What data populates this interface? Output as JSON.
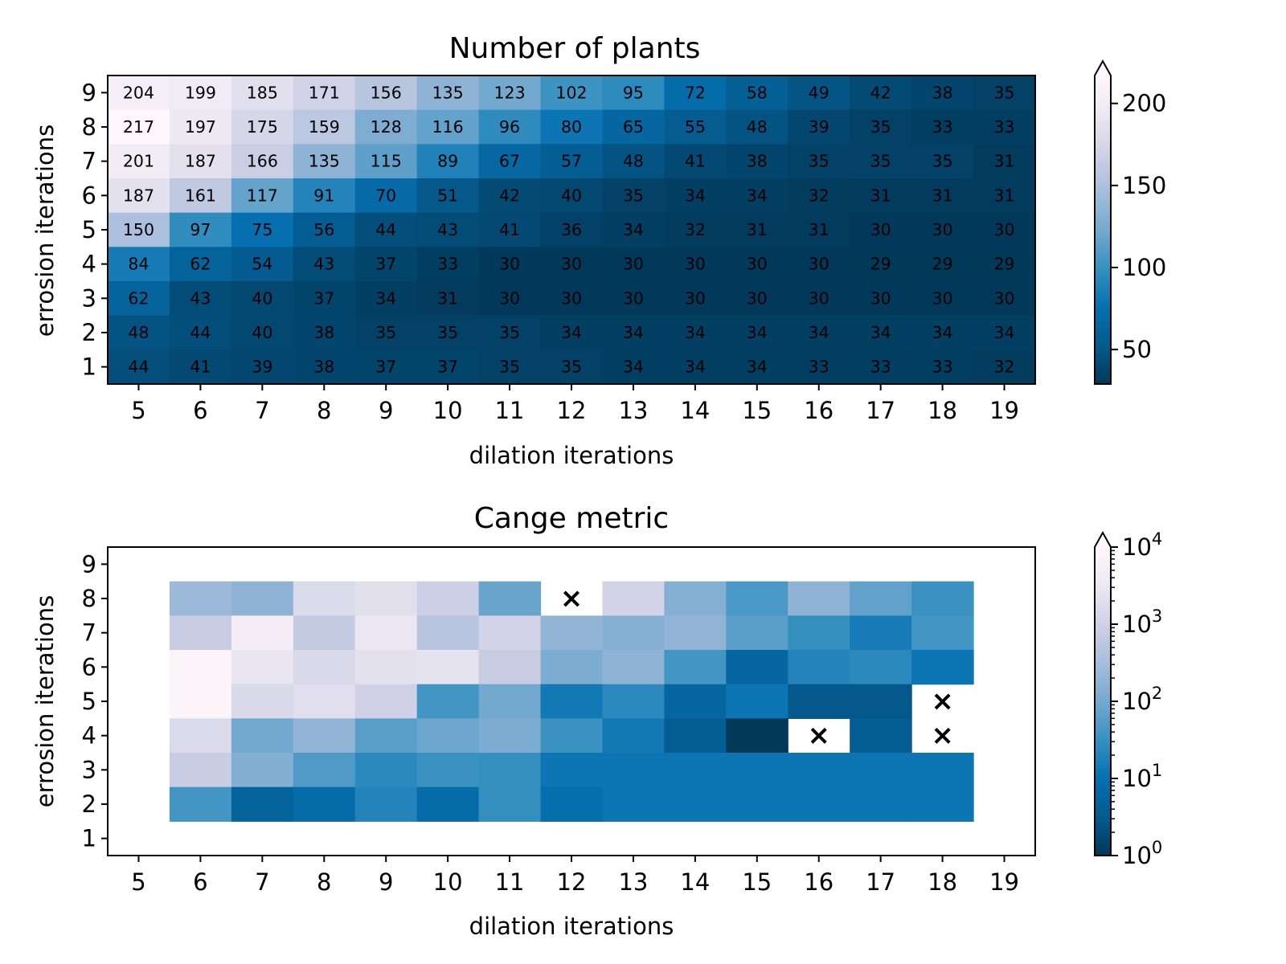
{
  "chart_data": [
    {
      "type": "heatmap",
      "title": "Number of plants",
      "xlabel": "dilation iterations",
      "ylabel": "errosion iterations",
      "x": [
        5,
        6,
        7,
        8,
        9,
        10,
        11,
        12,
        13,
        14,
        15,
        16,
        17,
        18,
        19
      ],
      "y": [
        9,
        8,
        7,
        6,
        5,
        4,
        3,
        2,
        1
      ],
      "values": [
        [
          204,
          199,
          185,
          171,
          156,
          135,
          123,
          102,
          95,
          72,
          58,
          49,
          42,
          38,
          35
        ],
        [
          217,
          197,
          175,
          159,
          128,
          116,
          96,
          80,
          65,
          55,
          48,
          39,
          35,
          33,
          33
        ],
        [
          201,
          187,
          166,
          135,
          115,
          89,
          67,
          57,
          48,
          41,
          38,
          35,
          35,
          35,
          31
        ],
        [
          187,
          161,
          117,
          91,
          70,
          51,
          42,
          40,
          35,
          34,
          34,
          32,
          31,
          31,
          31
        ],
        [
          150,
          97,
          75,
          56,
          44,
          43,
          41,
          36,
          34,
          32,
          31,
          31,
          30,
          30,
          30
        ],
        [
          84,
          62,
          54,
          43,
          37,
          33,
          30,
          30,
          30,
          30,
          30,
          30,
          29,
          29,
          29
        ],
        [
          62,
          43,
          40,
          37,
          34,
          31,
          30,
          30,
          30,
          30,
          30,
          30,
          30,
          30,
          30
        ],
        [
          48,
          44,
          40,
          38,
          35,
          35,
          35,
          34,
          34,
          34,
          34,
          34,
          34,
          34,
          34
        ],
        [
          44,
          41,
          39,
          38,
          37,
          37,
          35,
          35,
          34,
          34,
          34,
          33,
          33,
          33,
          32
        ]
      ],
      "colorbar": {
        "ticks": [
          50,
          100,
          150,
          200
        ],
        "range": [
          29,
          217
        ],
        "extend": "max"
      },
      "colormap": [
        "#023858",
        "#045a8d",
        "#0570b0",
        "#3690c0",
        "#74a9cf",
        "#a6bddb",
        "#d0d1e6",
        "#ece7f2",
        "#fff7fb"
      ]
    },
    {
      "type": "heatmap",
      "title": "Cange metric",
      "xlabel": "dilation iterations",
      "ylabel": "errosion iterations",
      "x": [
        5,
        6,
        7,
        8,
        9,
        10,
        11,
        12,
        13,
        14,
        15,
        16,
        17,
        18,
        19
      ],
      "y": [
        9,
        8,
        7,
        6,
        5,
        4,
        3,
        2,
        1
      ],
      "log_scale": true,
      "note_cells": "null = no value; 'x' = marked cell",
      "values": [
        [
          null,
          null,
          null,
          null,
          null,
          null,
          null,
          null,
          null,
          null,
          null,
          null,
          null,
          null,
          null
        ],
        [
          null,
          250,
          180,
          1600,
          2200,
          900,
          80,
          "x",
          1100,
          150,
          45,
          180,
          70,
          35,
          null
        ],
        [
          null,
          800,
          5000,
          700,
          3000,
          500,
          1100,
          200,
          150,
          200,
          60,
          30,
          15,
          40,
          null
        ],
        [
          null,
          8000,
          2800,
          1500,
          2300,
          2500,
          800,
          120,
          180,
          40,
          6,
          20,
          25,
          12,
          null
        ],
        [
          null,
          8000,
          1500,
          2000,
          1000,
          40,
          100,
          14,
          25,
          6,
          12,
          3,
          3,
          "x",
          null
        ],
        [
          null,
          1600,
          100,
          200,
          60,
          90,
          120,
          35,
          14,
          4,
          1,
          "x",
          4,
          "x",
          null
        ],
        [
          null,
          800,
          140,
          50,
          25,
          35,
          30,
          12,
          12,
          12,
          12,
          12,
          12,
          12,
          null
        ],
        [
          null,
          40,
          5,
          8,
          20,
          8,
          30,
          9,
          12,
          12,
          12,
          12,
          12,
          12,
          null
        ],
        [
          null,
          null,
          null,
          null,
          null,
          null,
          null,
          null,
          null,
          null,
          null,
          null,
          null,
          null,
          null
        ]
      ],
      "colorbar": {
        "scale": "log",
        "range": [
          1,
          10000
        ],
        "ticks": [
          1,
          10,
          100,
          1000,
          10000
        ],
        "tick_labels": [
          "10",
          "10",
          "10",
          "10",
          "10"
        ],
        "tick_exponents": [
          "0",
          "1",
          "2",
          "3",
          "4"
        ],
        "extend": "max"
      },
      "markers": {
        "symbol": "×",
        "color": "#e41a1c"
      },
      "colormap": [
        "#023858",
        "#045a8d",
        "#0570b0",
        "#3690c0",
        "#74a9cf",
        "#a6bddb",
        "#d0d1e6",
        "#ece7f2",
        "#fff7fb"
      ]
    }
  ]
}
